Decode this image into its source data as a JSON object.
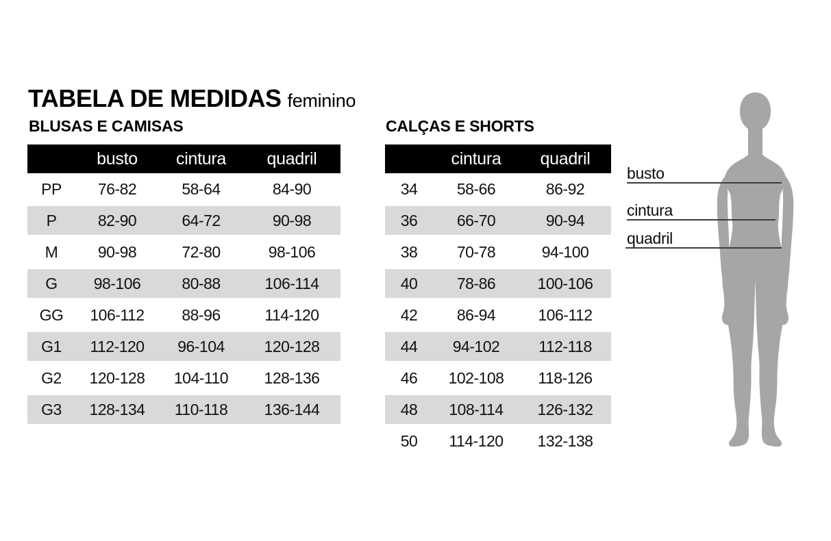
{
  "title": {
    "main": "TABELA DE MEDIDAS",
    "suffix": "feminino"
  },
  "tables": [
    {
      "section": "BLUSAS E CAMISAS",
      "columns": [
        "",
        "busto",
        "cintura",
        "quadril"
      ],
      "rows": [
        [
          "PP",
          "76-82",
          "58-64",
          "84-90"
        ],
        [
          "P",
          "82-90",
          "64-72",
          "90-98"
        ],
        [
          "M",
          "90-98",
          "72-80",
          "98-106"
        ],
        [
          "G",
          "98-106",
          "80-88",
          "106-114"
        ],
        [
          "GG",
          "106-112",
          "88-96",
          "114-120"
        ],
        [
          "G1",
          "112-120",
          "96-104",
          "120-128"
        ],
        [
          "G2",
          "120-128",
          "104-110",
          "128-136"
        ],
        [
          "G3",
          "128-134",
          "110-118",
          "136-144"
        ]
      ]
    },
    {
      "section": "CALÇAS E SHORTS",
      "columns": [
        "",
        "cintura",
        "quadril"
      ],
      "rows": [
        [
          "34",
          "58-66",
          "86-92"
        ],
        [
          "36",
          "66-70",
          "90-94"
        ],
        [
          "38",
          "70-78",
          "94-100"
        ],
        [
          "40",
          "78-86",
          "100-106"
        ],
        [
          "42",
          "86-94",
          "106-112"
        ],
        [
          "44",
          "94-102",
          "112-118"
        ],
        [
          "46",
          "102-108",
          "118-126"
        ],
        [
          "48",
          "108-114",
          "126-132"
        ],
        [
          "50",
          "114-120",
          "132-138"
        ]
      ]
    }
  ],
  "figure": {
    "silhouette": "female-body-silhouette",
    "labels": [
      "busto",
      "cintura",
      "quadril"
    ]
  },
  "colors": {
    "background": "#ffffff",
    "header_bg": "#000000",
    "header_text": "#ffffff",
    "row_alt_bg": "#d9d9d9",
    "text": "#111111",
    "silhouette": "#a6a6a6",
    "measure_line": "#3d3d3d"
  }
}
